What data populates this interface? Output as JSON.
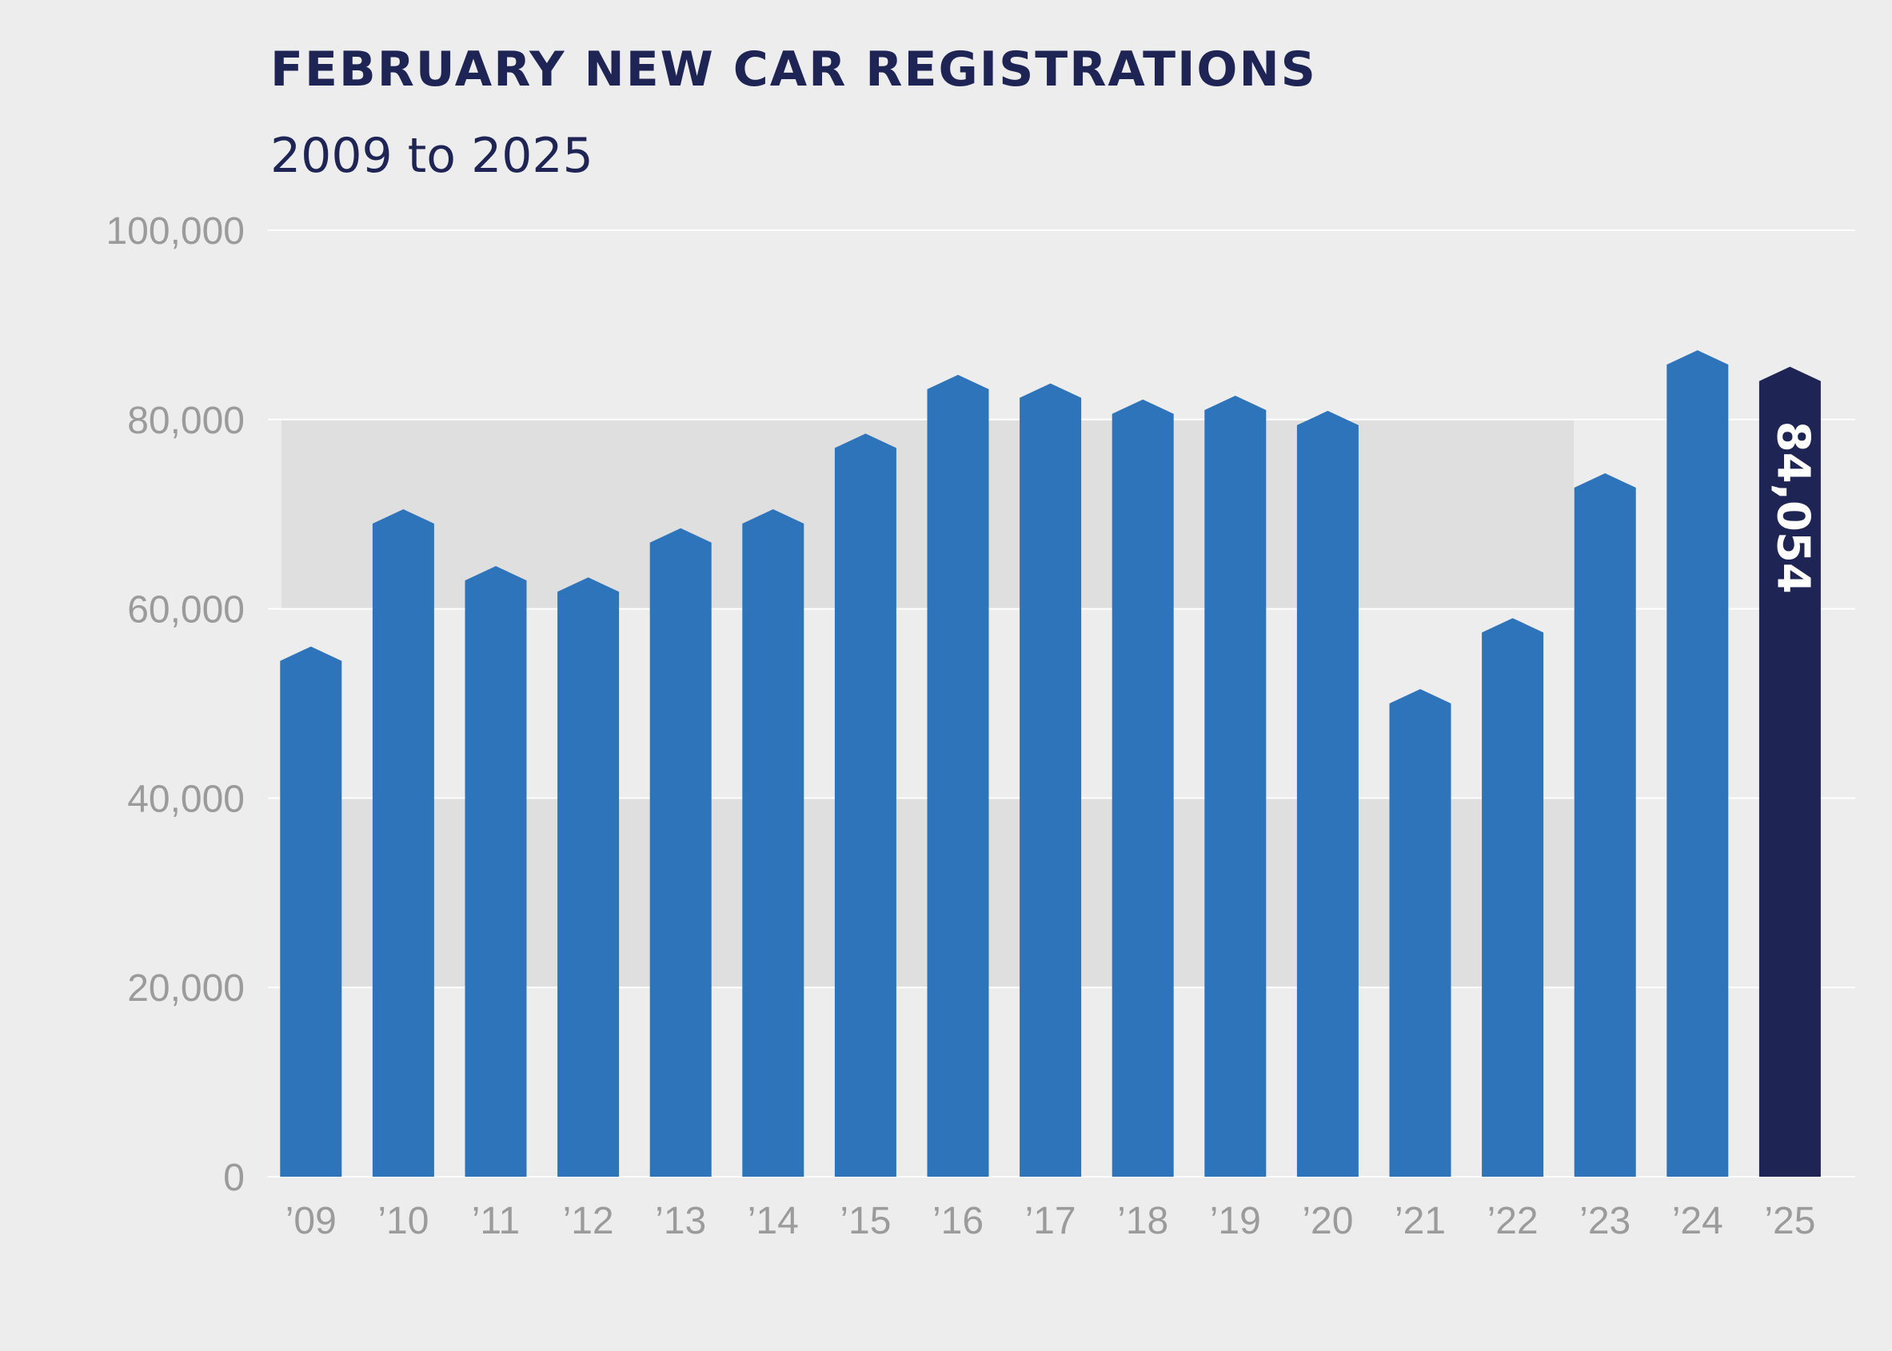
{
  "chart_data": {
    "type": "bar",
    "title": "FEBRUARY NEW CAR REGISTRATIONS",
    "subtitle": "2009 to 2025",
    "xlabel": "",
    "ylabel": "",
    "ylim": [
      0,
      100000
    ],
    "yticks": [
      0,
      20000,
      40000,
      60000,
      80000,
      100000
    ],
    "ytick_labels": [
      "0",
      "20,000",
      "40,000",
      "60,000",
      "80,000",
      "100,000"
    ],
    "categories": [
      "’09",
      "’10",
      "’11",
      "’12",
      "’13",
      "’14",
      "’15",
      "’16",
      "’17",
      "’18",
      "’19",
      "’20",
      "’21",
      "’22",
      "’23",
      "’24",
      "’25"
    ],
    "values": [
      54500,
      69000,
      63000,
      61800,
      67000,
      69000,
      77000,
      83200,
      82300,
      80600,
      81000,
      79400,
      50000,
      57500,
      72800,
      85800,
      84054
    ],
    "highlight": {
      "category": "’25",
      "value_label": "84,054"
    },
    "grid": true,
    "colors": {
      "bar": "#2e74ba",
      "highlight_bar": "#1e2453",
      "title": "#1e2453",
      "tick_text": "#9b9b9b",
      "background": "#ededee",
      "band": "#e0dfe0",
      "gridline": "#ffffff"
    }
  }
}
